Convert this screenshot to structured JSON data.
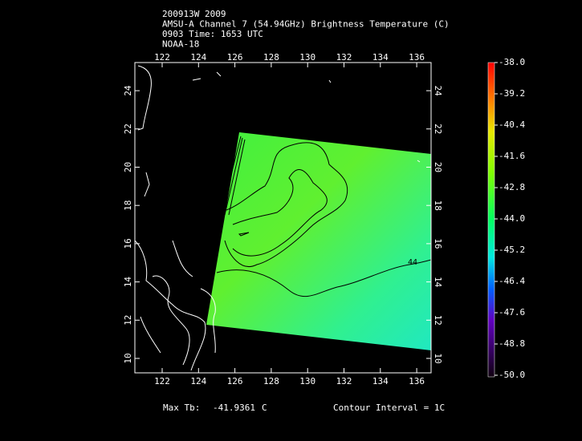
{
  "header": {
    "lines": [
      "200913W 2009",
      "AMSU-A Channel 7 (54.94GHz) Brightness Temperature (C)",
      "0903 Time: 1653 UTC",
      "NOAA-18"
    ]
  },
  "map": {
    "lon_ticks": [
      122,
      124,
      126,
      128,
      130,
      132,
      134,
      136
    ],
    "lat_ticks": [
      10,
      12,
      14,
      16,
      18,
      20,
      22,
      24
    ],
    "contour_label": "44"
  },
  "colorbar": {
    "labels": [
      "-38.0",
      "-39.2",
      "-40.4",
      "-41.6",
      "-42.8",
      "-44.0",
      "-45.2",
      "-46.4",
      "-47.6",
      "-48.8",
      "-50.0"
    ]
  },
  "footer": {
    "max_label": "Max Tb:",
    "max_value": "-41.9361",
    "max_unit": "C",
    "contour_interval": "Contour Interval = 1C"
  }
}
